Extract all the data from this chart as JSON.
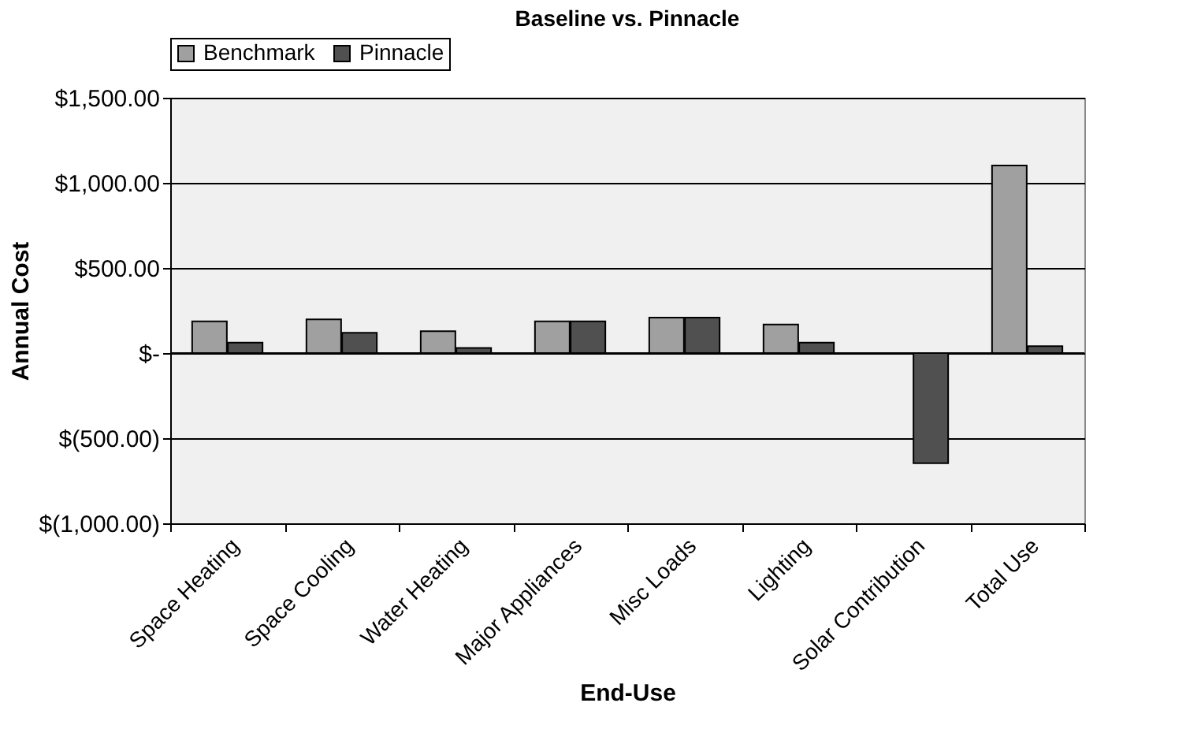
{
  "chart_data": {
    "type": "bar",
    "title": "Baseline vs. Pinnacle",
    "xlabel": "End-Use",
    "ylabel": "Annual Cost",
    "categories": [
      "Space Heating",
      "Space Cooling",
      "Water Heating",
      "Major Appliances",
      "Misc Loads",
      "Lighting",
      "Solar Contribution",
      "Total Use"
    ],
    "series": [
      {
        "name": "Benchmark",
        "color": "#a0a0a0",
        "values": [
          186,
          198,
          128,
          186,
          208,
          168,
          null,
          1102
        ]
      },
      {
        "name": "Pinnacle",
        "color": "#505050",
        "values": [
          61,
          119,
          30,
          186,
          208,
          61,
          -647,
          40
        ]
      }
    ],
    "ylim": [
      -1000,
      1500
    ],
    "yticks": [
      {
        "value": -1000,
        "label": "$(1,000.00)"
      },
      {
        "value": -500,
        "label": "$(500.00)"
      },
      {
        "value": 0,
        "label": "$-"
      },
      {
        "value": 500,
        "label": "$500.00"
      },
      {
        "value": 1000,
        "label": "$1,000.00"
      },
      {
        "value": 1500,
        "label": "$1,500.00"
      }
    ],
    "grid": "y",
    "legend": "top"
  }
}
